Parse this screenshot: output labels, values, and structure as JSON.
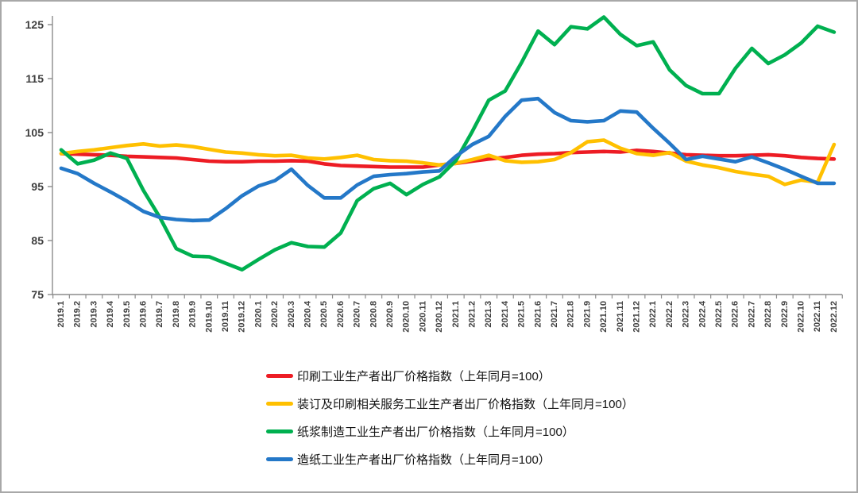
{
  "chart_data": {
    "type": "line",
    "title": "",
    "xlabel": "",
    "ylabel": "",
    "grid": false,
    "legend_position": "bottom-left",
    "ylim": [
      75,
      130
    ],
    "y_ticks": [
      75,
      85,
      95,
      105,
      115,
      125
    ],
    "x_labels": [
      "2019.1",
      "2019.2",
      "2019.3",
      "2019.4",
      "2019.5",
      "2019.6",
      "2019.7",
      "2019.8",
      "2019.9",
      "2019.10",
      "2019.11",
      "2019.12",
      "2020.1",
      "2020.2",
      "2020.3",
      "2020.4",
      "2020.5",
      "2020.6",
      "2020.7",
      "2020.8",
      "2020.9",
      "2020.10",
      "2020.11",
      "2020.12",
      "2021.1",
      "2021.2",
      "2021.3",
      "2021.4",
      "2021.5",
      "2021.6",
      "2021.7",
      "2021.8",
      "2021.9",
      "2021.10",
      "2021.11",
      "2021.12",
      "2022.1",
      "2022.2",
      "2022.3",
      "2022.4",
      "2022.5",
      "2022.6",
      "2022.7",
      "2022.8",
      "2022.9",
      "2022.10",
      "2022.11",
      "2022.12"
    ],
    "series": [
      {
        "key": "printing",
        "name": "印刷工业生产者出厂价格指数（上年同月=100）",
        "color": "#ed1c24",
        "values": [
          101.1,
          101.0,
          100.9,
          100.8,
          100.6,
          100.5,
          100.4,
          100.3,
          100.0,
          99.7,
          99.6,
          99.6,
          99.7,
          99.7,
          99.8,
          99.7,
          99.2,
          98.9,
          98.8,
          98.7,
          98.6,
          98.6,
          98.6,
          99.0,
          99.3,
          99.7,
          100.1,
          100.4,
          100.8,
          101.0,
          101.1,
          101.3,
          101.4,
          101.5,
          101.4,
          101.7,
          101.5,
          101.2,
          100.9,
          100.8,
          100.7,
          100.7,
          100.8,
          100.9,
          100.7,
          100.4,
          100.2,
          100.1
        ]
      },
      {
        "key": "binding-printing-services",
        "name": "装订及印刷相关服务工业生产者出厂价格指数（上年同月=100）",
        "color": "#ffc000",
        "values": [
          101.1,
          101.5,
          101.8,
          102.2,
          102.6,
          102.9,
          102.5,
          102.7,
          102.4,
          101.9,
          101.4,
          101.2,
          100.9,
          100.7,
          100.8,
          100.3,
          100.1,
          100.4,
          100.8,
          100.0,
          99.8,
          99.7,
          99.4,
          99.0,
          99.3,
          100.0,
          100.8,
          99.8,
          99.5,
          99.6,
          100.0,
          101.3,
          103.3,
          103.6,
          102.1,
          101.1,
          100.8,
          101.3,
          99.7,
          99.0,
          98.5,
          97.8,
          97.3,
          96.9,
          95.4,
          96.2,
          95.8,
          102.8
        ]
      },
      {
        "key": "pulp-manufacturing",
        "name": "纸浆制造工业生产者出厂价格指数（上年同月=100）",
        "color": "#00b050",
        "values": [
          101.8,
          99.2,
          99.9,
          101.2,
          100.2,
          94.3,
          89.3,
          83.5,
          82.1,
          82.0,
          80.8,
          79.6,
          81.5,
          83.3,
          84.6,
          83.9,
          83.8,
          86.4,
          92.4,
          94.6,
          95.6,
          93.5,
          95.4,
          96.8,
          99.8,
          105.2,
          111.0,
          112.7,
          118.0,
          123.8,
          121.3,
          124.6,
          124.2,
          126.4,
          123.2,
          121.1,
          121.8,
          116.6,
          113.7,
          112.2,
          112.2,
          116.9,
          120.6,
          117.8,
          119.4,
          121.6,
          124.7,
          123.6
        ]
      },
      {
        "key": "papermaking",
        "name": "造纸工业生产者出厂价格指数（上年同月=100）",
        "color": "#2478c8",
        "values": [
          98.4,
          97.4,
          95.6,
          94.0,
          92.3,
          90.4,
          89.3,
          88.9,
          88.7,
          88.8,
          90.9,
          93.3,
          95.1,
          96.1,
          98.2,
          95.2,
          92.9,
          92.9,
          95.3,
          96.9,
          97.2,
          97.4,
          97.7,
          97.9,
          100.6,
          102.8,
          104.3,
          108.0,
          111.0,
          111.3,
          108.7,
          107.2,
          107.0,
          107.2,
          109.0,
          108.8,
          105.8,
          103.0,
          100.0,
          100.6,
          100.1,
          99.6,
          100.5,
          99.4,
          98.2,
          96.9,
          95.6,
          95.6
        ]
      }
    ],
    "axis_color": "#8c8c8c"
  }
}
